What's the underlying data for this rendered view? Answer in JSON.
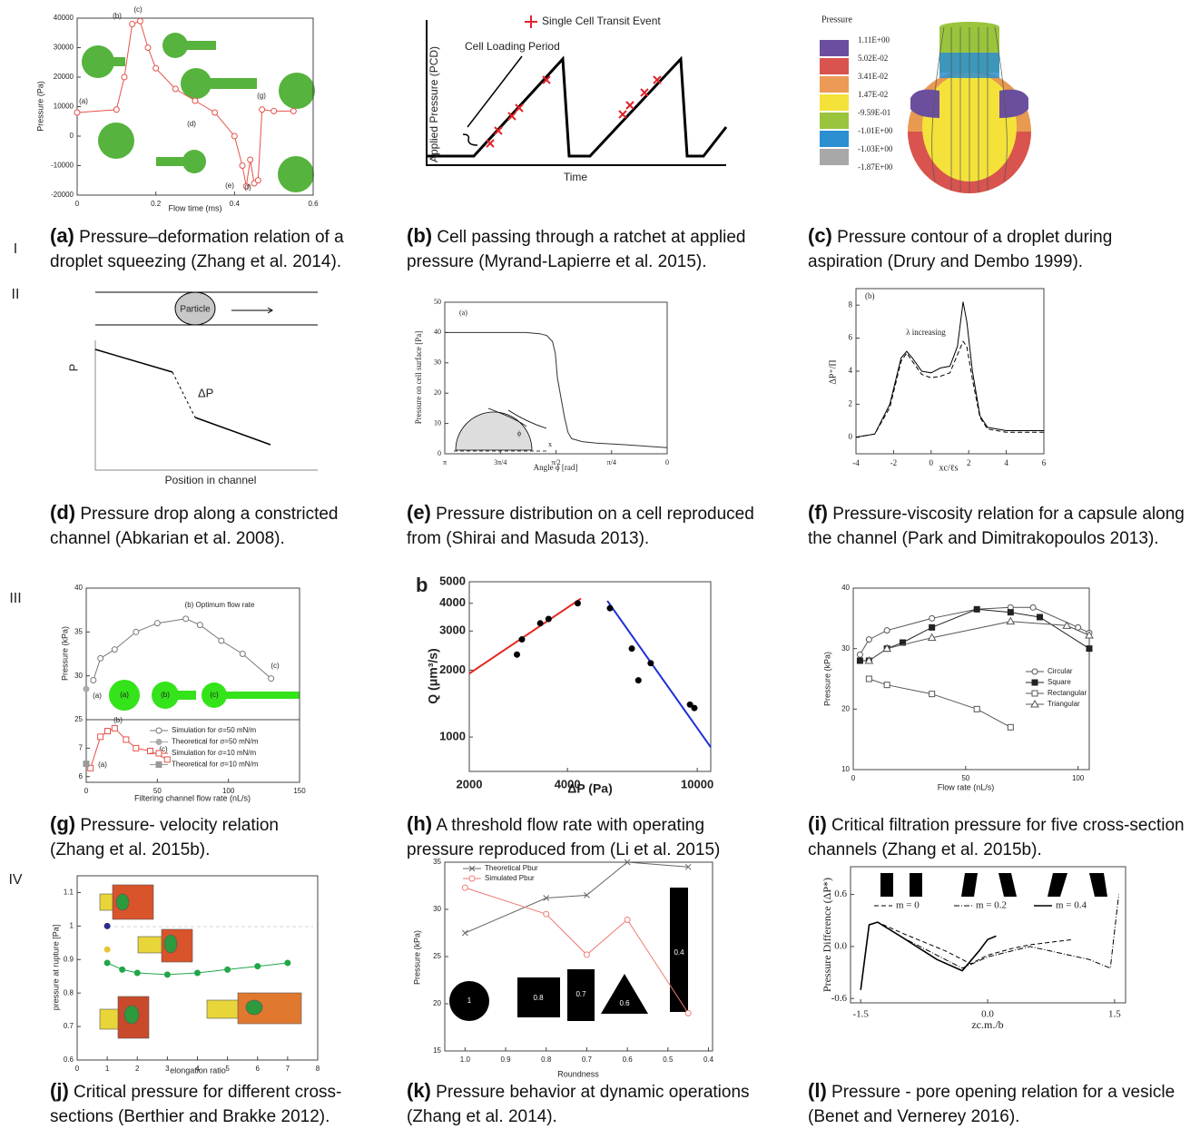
{
  "row_labels": [
    "I",
    "II",
    "III",
    "IV"
  ],
  "panels": [
    {
      "label": "(a)",
      "caption": "Pressure–deformation relation of a droplet squeezing (Zhang et al. 2014).",
      "chart": {
        "type": "line",
        "xlabel": "Flow time (ms)",
        "ylabel": "Pressure (Pa)",
        "xlim": [
          0,
          0.6
        ],
        "xticks": [
          0,
          0.2,
          0.4,
          0.6
        ],
        "ylim": [
          -20000,
          40000
        ],
        "yticks": [
          -20000,
          -10000,
          0,
          10000,
          20000,
          30000,
          40000
        ],
        "annotations": [
          "(a)",
          "(b)",
          "(c)",
          "(d)",
          "(e)",
          "(f)",
          "(g)"
        ],
        "series": [
          {
            "color": "#e5534b",
            "marker": "circle",
            "x": [
              0,
              0.1,
              0.12,
              0.14,
              0.16,
              0.18,
              0.2,
              0.25,
              0.3,
              0.35,
              0.4,
              0.42,
              0.43,
              0.44,
              0.45,
              0.46,
              0.47,
              0.5,
              0.55
            ],
            "y": [
              8000,
              9000,
              20000,
              38000,
              39000,
              30000,
              23000,
              16000,
              12000,
              8000,
              0,
              -10000,
              -17000,
              -8000,
              -16000,
              -15000,
              9000,
              8500,
              8500
            ]
          }
        ]
      }
    },
    {
      "label": "(b)",
      "caption": "Cell passing through a ratchet at applied pressure (Myrand-Lapierre et al. 2015).",
      "schematic": {
        "legend": "Single Cell Transit Event",
        "annotation": "Cell Loading Period",
        "ylabel": "Applied Pressure (PCD)",
        "xlabel": "Time"
      }
    },
    {
      "label": "(c)",
      "caption": "Pressure contour of a droplet during aspiration (Drury and Dembo 1999).",
      "schematic": {
        "title": "Pressure",
        "levels": [
          "1.11E+00",
          "5.02E-02",
          "3.41E-02",
          "1.47E-02",
          "-9.59E-01",
          "-1.01E+00",
          "-1.03E+00",
          "-1.87E+00"
        ],
        "colors": [
          "#6b4f9e",
          "#d9534f",
          "#ec9a55",
          "#f4e23a",
          "#9ac43c",
          "#2b8fd0",
          "#a8a8a8"
        ]
      }
    },
    {
      "label": "(d)",
      "caption": "Pressure drop along a constricted channel (Abkarian et al. 2008).",
      "schematic": {
        "particle": "Particle",
        "ylabel": "P",
        "drop": "ΔP",
        "xlabel": "Position in channel"
      }
    },
    {
      "label": "(e)",
      "caption": "Pressure distribution on a cell reproduced from (Shirai and Masuda 2013).",
      "chart": {
        "type": "line",
        "tag": "(a)",
        "xlabel": "Angle ϕ [rad]",
        "ylabel": "Pressure on cell surface [Pa]",
        "xlim": [
          3.1416,
          0
        ],
        "xticks": [
          {
            "value": 3.1416,
            "label": "π"
          },
          {
            "value": 2.3562,
            "label": "3π/4"
          },
          {
            "value": 1.5708,
            "label": "π/2"
          },
          {
            "value": 0.7854,
            "label": "π/4"
          },
          0
        ],
        "ylim": [
          0,
          50
        ],
        "yticks": [
          0,
          10,
          20,
          30,
          40,
          50
        ],
        "annotations": [
          "ϕ",
          "x"
        ],
        "series": [
          {
            "color": "#333333",
            "x": [
              3.14,
              2.5,
              2.0,
              1.8,
              1.7,
              1.62,
              1.58,
              1.55,
              1.45,
              1.4,
              1.35,
              1.2,
              1.0,
              0.6,
              0.3,
              0
            ],
            "y": [
              40,
              40,
              40,
              39.6,
              39,
              37,
              33,
              25,
              12,
              7,
              5,
              4,
              3.5,
              3,
              2.5,
              2
            ]
          }
        ]
      }
    },
    {
      "label": "(f)",
      "caption": "Pressure-viscosity relation for a capsule along the channel (Park and Dimitrakopoulos 2013).",
      "chart": {
        "type": "line",
        "tag": "(b)",
        "xlabel": "xc/ℓs",
        "ylabel": "ΔP⁺/Π",
        "xlim": [
          -4,
          6
        ],
        "xticks": [
          -4,
          -2,
          0,
          2,
          4,
          6
        ],
        "ylim": [
          -1,
          9
        ],
        "yticks": [
          0,
          2,
          4,
          6,
          8
        ],
        "annotations": [
          "λ increasing"
        ],
        "series": [
          {
            "color": "#000000",
            "x": [
              -4,
              -3,
              -2.2,
              -1.6,
              -1.3,
              -1,
              -0.5,
              0,
              0.5,
              1,
              1.4,
              1.7,
              1.9,
              2.2,
              2.6,
              3,
              4,
              6
            ],
            "y": [
              0,
              0.2,
              2,
              4.8,
              5.2,
              4.8,
              4,
              3.9,
              4.2,
              4.3,
              5.5,
              8.2,
              7,
              4,
              1.3,
              0.6,
              0.4,
              0.4
            ]
          },
          {
            "color": "#000000",
            "dash": "dashed",
            "x": [
              -4,
              -3,
              -2.2,
              -1.6,
              -1.3,
              -1,
              -0.5,
              0,
              0.5,
              1,
              1.4,
              1.7,
              1.9,
              2.2,
              2.6,
              3,
              4,
              6
            ],
            "y": [
              0,
              0.2,
              1.8,
              4.6,
              5.1,
              4.6,
              3.8,
              3.6,
              3.7,
              3.9,
              5,
              5.8,
              5.5,
              3.5,
              1.2,
              0.5,
              0.3,
              0.3
            ]
          }
        ]
      }
    },
    {
      "label": "(g)",
      "caption": "Pressure- velocity relation (Zhang et al. 2015b).",
      "chart": {
        "type": "line",
        "xlabel": "Filtering channel flow rate (nL/s)",
        "ylabel": "Pressure (kPa)",
        "xlim": [
          0,
          150
        ],
        "xticks": [
          0,
          50,
          100,
          150
        ],
        "ylim": [
          25,
          40
        ],
        "yticks": [
          25,
          30,
          35,
          40
        ],
        "annotations": [
          "(b) Optimum flow rate",
          "(a)",
          "(c)",
          "(b)",
          "(a)",
          "(c)",
          "(a)",
          "(b)",
          "(c)"
        ],
        "series": [
          {
            "name": "Simulation  for σ=50 mN/m",
            "color": "#777777",
            "marker": "circle",
            "x": [
              5,
              10,
              20,
              35,
              50,
              70,
              80,
              95,
              110,
              130
            ],
            "y": [
              29.5,
              32,
              33,
              35,
              36,
              36.5,
              35.8,
              34,
              32.5,
              29.7
            ]
          },
          {
            "name": "Theoretical for σ=50 mN/m",
            "color": "#aaaaaa",
            "marker": "dot",
            "line": false,
            "x": [
              0
            ],
            "y": [
              28.5
            ]
          }
        ],
        "lower": {
          "ylim": [
            5.8,
            8
          ],
          "yticks": [
            6,
            7
          ],
          "series": [
            {
              "name": "Simulation  for σ=10 mN/m",
              "color": "#e5534b",
              "marker": "open-square",
              "x": [
                3,
                10,
                15,
                20,
                28,
                35,
                45,
                57
              ],
              "y": [
                6.3,
                7.4,
                7.6,
                7.7,
                7.3,
                7.0,
                6.9,
                6.6
              ]
            },
            {
              "name": "Theoretical for σ=10 mN/m",
              "color": "#999999",
              "marker": "square",
              "line": false,
              "x": [
                0
              ],
              "y": [
                6.45
              ]
            }
          ]
        }
      }
    },
    {
      "label": "(h)",
      "caption": "A threshold flow rate with operating pressure reproduced from (Li et al. 2015)",
      "chart": {
        "type": "line",
        "tag": "b",
        "xlabel": "ΔP (Pa)",
        "ylabel": "Q (μm³/s)",
        "xscale": "log",
        "yscale": "log",
        "xlim": [
          2000,
          11000
        ],
        "xticks": [
          2000,
          4000,
          10000
        ],
        "ylim": [
          700,
          5000
        ],
        "yticks": [
          1000,
          2000,
          3000,
          4000,
          5000
        ],
        "series": [
          {
            "color": "#e8251e",
            "width": 2,
            "x": [
              2000,
              4400
            ],
            "y": [
              1930,
              4200
            ]
          },
          {
            "color": "#1c2fd6",
            "width": 2,
            "x": [
              5300,
              11000
            ],
            "y": [
              4100,
              900
            ]
          },
          {
            "color": "#000000",
            "marker": "dot",
            "line": false,
            "x": [
              2800,
              2900,
              3300,
              3500,
              4300,
              5400,
              6300,
              6600,
              7200,
              9500,
              9800
            ],
            "y": [
              2350,
              2750,
              3250,
              3400,
              4000,
              3800,
              2500,
              1800,
              2150,
              1400,
              1350
            ]
          }
        ]
      }
    },
    {
      "label": "(i)",
      "caption": "Critical filtration pressure for five cross-section channels (Zhang et al. 2015b).",
      "chart": {
        "type": "line",
        "xlabel": "Flow rate (nL/s)",
        "ylabel": "Pressure (kPa)",
        "xlim": [
          0,
          105
        ],
        "xticks": [
          0,
          50,
          100
        ],
        "ylim": [
          10,
          40
        ],
        "yticks": [
          10,
          20,
          30,
          40
        ],
        "series": [
          {
            "name": "Circular",
            "color": "#555555",
            "marker": "circle",
            "x": [
              3,
              7,
              15,
              35,
              55,
              70,
              80,
              100,
              105
            ],
            "y": [
              29,
              31.5,
              33,
              35,
              36.5,
              36.8,
              36.8,
              33.5,
              32.6
            ]
          },
          {
            "name": "Square",
            "color": "#222222",
            "marker": "square",
            "x": [
              3,
              7,
              15,
              22,
              35,
              55,
              70,
              83,
              105
            ],
            "y": [
              28,
              28,
              30,
              31,
              33.5,
              36.5,
              36,
              35.2,
              30
            ]
          },
          {
            "name": "Rectangular",
            "color": "#555555",
            "marker": "open-square",
            "x": [
              7,
              15,
              35,
              55,
              70
            ],
            "y": [
              25,
              24,
              22.5,
              20,
              17
            ]
          },
          {
            "name": "Triangular",
            "color": "#555555",
            "marker": "triangle",
            "x": [
              7,
              15,
              35,
              70,
              95,
              105
            ],
            "y": [
              28,
              30,
              31.8,
              34.5,
              33.8,
              32.2
            ]
          }
        ]
      }
    },
    {
      "label": "(j)",
      "caption": "Critical pressure for different cross-sections (Berthier and Brakke 2012).",
      "chart": {
        "type": "line",
        "xlabel": "elongation ratio",
        "ylabel": "pressure at rupture [Pa]",
        "xlim": [
          0,
          8
        ],
        "xticks": [
          0,
          1,
          2,
          3,
          4,
          5,
          6,
          7,
          8
        ],
        "ylim": [
          0.6,
          1.15
        ],
        "yticks": [
          0.6,
          0.7,
          0.8,
          0.9,
          1,
          1.1
        ],
        "series": [
          {
            "color": "#22a64a",
            "marker": "dot",
            "x": [
              1,
              1.5,
              2,
              3,
              4,
              5,
              6,
              7
            ],
            "y": [
              0.89,
              0.87,
              0.86,
              0.855,
              0.86,
              0.87,
              0.88,
              0.89
            ]
          },
          {
            "color": "#2a2a8a",
            "marker": "dot",
            "line": false,
            "x": [
              1
            ],
            "y": [
              1
            ]
          },
          {
            "color": "#e8c53a",
            "marker": "dot",
            "line": false,
            "x": [
              1
            ],
            "y": [
              0.93
            ]
          }
        ]
      }
    },
    {
      "label": "(k)",
      "caption": "Pressure behavior at dynamic operations (Zhang et al. 2014).",
      "chart": {
        "type": "line",
        "xlabel": "Roundness",
        "ylabel": "Pressure (kPa)",
        "xlim": [
          1.05,
          0.39
        ],
        "xticks": [
          {
            "value": 1,
            "label": "1.0"
          },
          0.9,
          0.8,
          0.7,
          0.6,
          0.5,
          0.4
        ],
        "ylim": [
          15,
          35
        ],
        "yticks": [
          15,
          20,
          25,
          30,
          35
        ],
        "shape_labels": [
          "1",
          "0.8",
          "0.7",
          "0.6",
          "0.4"
        ],
        "series": [
          {
            "name": "Theoretical Pbur",
            "color": "#666666",
            "marker": "x",
            "x": [
              1,
              0.8,
              0.7,
              0.6,
              0.45
            ],
            "y": [
              27.5,
              31.2,
              31.5,
              35,
              34.5
            ]
          },
          {
            "name": "Simulated Pbur",
            "color": "#f07b74",
            "marker": "circle",
            "x": [
              1,
              0.8,
              0.7,
              0.6,
              0.45
            ],
            "y": [
              32.3,
              29.5,
              25.2,
              28.9,
              19
            ]
          }
        ]
      }
    },
    {
      "label": "(l)",
      "caption": "Pressure - pore opening relation for a vesicle (Benet and Vernerey 2016).",
      "chart": {
        "type": "line",
        "xlabel": "zc.m./b",
        "ylabel": "Pressure Difference (ΔP*)",
        "xlim": [
          -1.62,
          1.63
        ],
        "xticks": [
          -1.5,
          {
            "value": 0,
            "label": "0.0"
          },
          1.5
        ],
        "ylim": [
          -0.65,
          0.92
        ],
        "yticks": [
          -0.6,
          {
            "value": 0,
            "label": "0.0"
          },
          0.6
        ],
        "series": [
          {
            "name": "m = 0",
            "color": "#000000",
            "dash": "dashed",
            "x": [
              -1.5,
              -1.4,
              -1.3,
              -1,
              -0.5,
              -0.2,
              0,
              0.3,
              0.5,
              1
            ],
            "y": [
              -0.5,
              0.25,
              0.28,
              0.15,
              -0.05,
              -0.2,
              -0.1,
              -0.02,
              0.02,
              0.08
            ]
          },
          {
            "name": "m = 0.2",
            "color": "#000000",
            "dash": "dashdot",
            "x": [
              -1.5,
              -1.4,
              -1.3,
              -1,
              -0.3,
              0,
              0.5,
              1.2,
              1.45,
              1.55
            ],
            "y": [
              -0.5,
              0.25,
              0.28,
              0.1,
              -0.25,
              -0.12,
              0,
              -0.15,
              -0.25,
              0.6
            ]
          },
          {
            "name": "m = 0.4",
            "color": "#000000",
            "width": 1.6,
            "x": [
              -1.5,
              -1.4,
              -1.3,
              -1,
              -0.6,
              -0.3,
              -0.1,
              0,
              0.1
            ],
            "y": [
              -0.5,
              0.25,
              0.28,
              0.1,
              -0.15,
              -0.28,
              -0.05,
              0.08,
              0.12
            ]
          }
        ]
      }
    }
  ]
}
